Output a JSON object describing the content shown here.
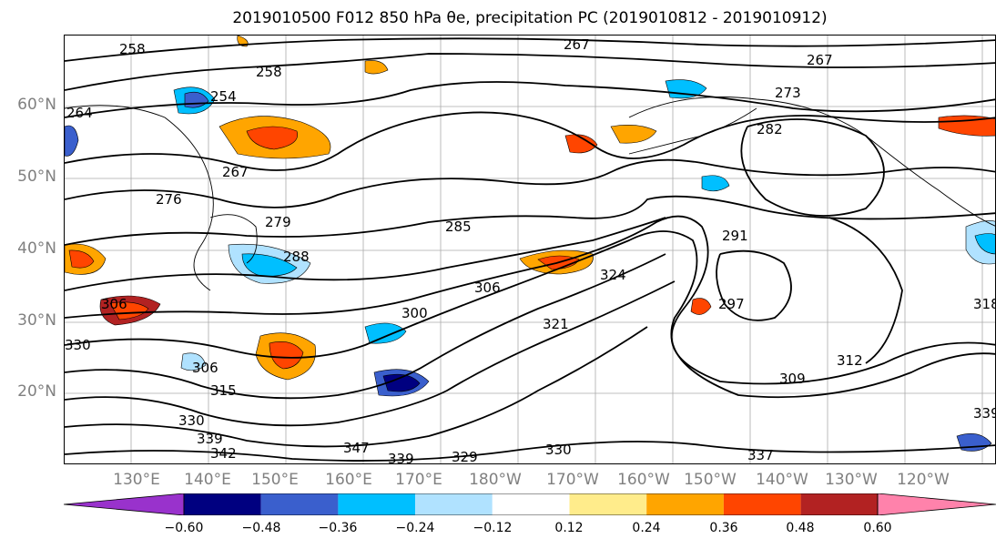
{
  "title": "2019010500 F012 850 hPa θe, precipitation PC (2019010812 - 2019010912)",
  "map": {
    "lat_labels": [
      "60°N",
      "50°N",
      "40°N",
      "30°N",
      "20°N"
    ],
    "lon_labels": [
      "130°E",
      "140°E",
      "150°E",
      "160°E",
      "170°E",
      "180°W",
      "170°W",
      "160°W",
      "150°W",
      "140°W",
      "130°W",
      "120°W"
    ],
    "contour_labels": [
      "258",
      "267",
      "254",
      "258",
      "264",
      "267",
      "276",
      "279",
      "285",
      "291",
      "282",
      "273",
      "267",
      "288",
      "306",
      "324",
      "300",
      "321",
      "297",
      "309",
      "312",
      "306",
      "315",
      "330",
      "339",
      "342",
      "347",
      "339",
      "329",
      "330",
      "337",
      "339",
      "330",
      "306",
      "318"
    ]
  },
  "colorbar": {
    "colors": [
      "#9932cc",
      "#000080",
      "#3a5fcd",
      "#00bfff",
      "#b0e2ff",
      "#ffffff",
      "#ffec8b",
      "#ffa500",
      "#ff4500",
      "#b22222",
      "#ff82ab"
    ],
    "tick_labels": [
      "−0.60",
      "−0.48",
      "−0.36",
      "−0.24",
      "−0.12",
      "0.12",
      "0.24",
      "0.36",
      "0.48",
      "0.60"
    ],
    "extend": "both"
  }
}
